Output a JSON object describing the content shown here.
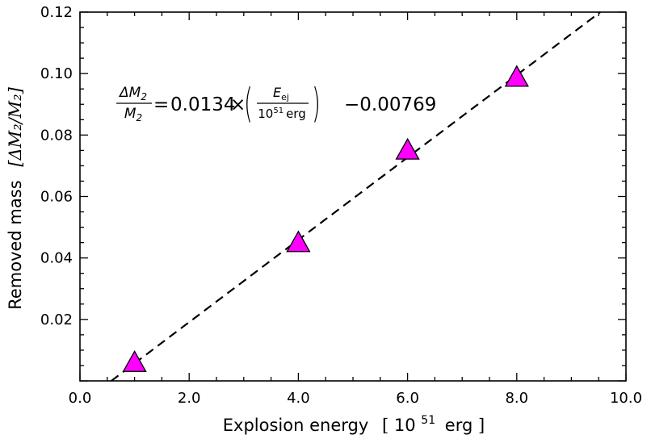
{
  "chart_data": {
    "type": "scatter",
    "x_ticks": [
      "0.0",
      "2.0",
      "4.0",
      "6.0",
      "8.0",
      "10.0"
    ],
    "y_ticks": [
      "0.02",
      "0.04",
      "0.06",
      "0.08",
      "0.10",
      "0.12"
    ],
    "xlim": [
      0,
      10
    ],
    "ylim": [
      0,
      0.12
    ],
    "xlabel": {
      "text": "Explosion energy",
      "bracket_open": "[",
      "unit_base": "10",
      "unit_exp": "51",
      "unit_tail": "erg",
      "bracket_close": "]"
    },
    "ylabel": {
      "text": "Removed mass",
      "unit": "[ΔM₂/M₂]"
    },
    "points": [
      {
        "x": 1.0,
        "y": 0.0057
      },
      {
        "x": 4.0,
        "y": 0.0447
      },
      {
        "x": 6.0,
        "y": 0.0748
      },
      {
        "x": 8.0,
        "y": 0.0985
      }
    ],
    "fit": {
      "slope": 0.0134,
      "intercept": -0.00769,
      "style": "dashed"
    },
    "annotation": {
      "lhs_num": "ΔM",
      "lhs_num_sub": "2",
      "lhs_den": "M",
      "lhs_den_sub": "2",
      "eq_sign": "=",
      "coef": "0.0134",
      "times": "×",
      "paren_open": "(",
      "rhs_num": "E",
      "rhs_num_sub": "ej",
      "rhs_den_base": "10",
      "rhs_den_exp": "51",
      "rhs_den_tail": "erg",
      "paren_close": ")",
      "constant": "−0.00769"
    },
    "marker": {
      "shape": "triangle",
      "fill": "#ff00ff",
      "stroke": "#000000"
    },
    "grid": false,
    "legend": "none"
  }
}
